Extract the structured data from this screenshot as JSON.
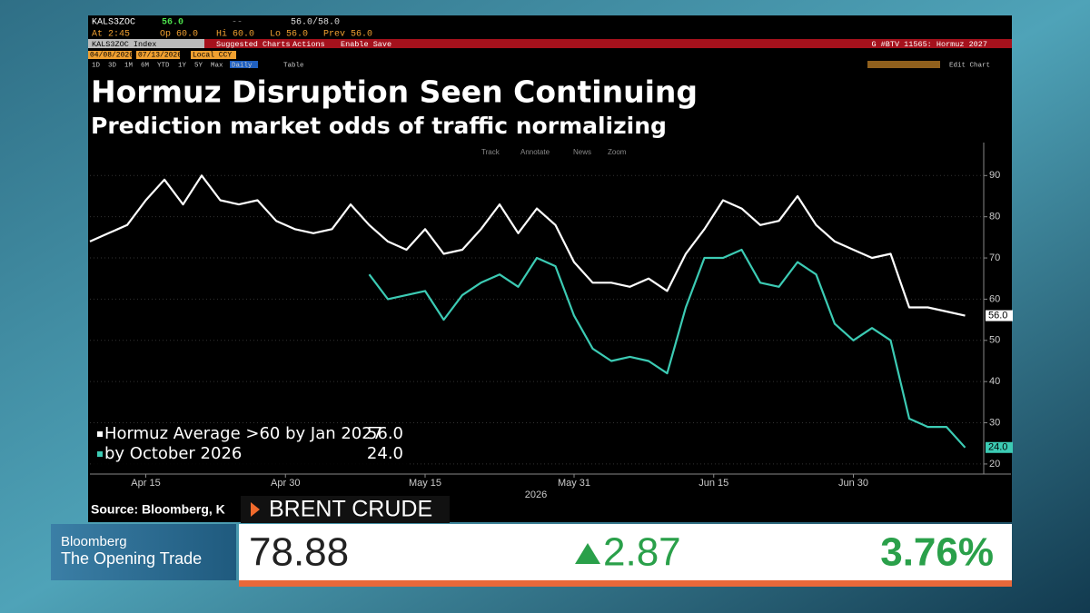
{
  "terminal": {
    "ticker": "KALS3ZOC",
    "last": "56.0",
    "dash": "--",
    "bid_ask": "56.0/58.0",
    "time": "At 2:45",
    "open": "Op 60.0",
    "high": "Hi 60.0",
    "low": "Lo 56.0",
    "prev": "Prev 56.0",
    "security": "KALS3ZOC Index",
    "menu": [
      "Suggested Charts",
      "Actions",
      "Enable Save"
    ],
    "chart_id": "G #BTV 11565: Hormuz 2027",
    "start_date": "04/08/2026",
    "end_date": "07/13/2026",
    "currency": "Local CCY",
    "periods": [
      "1D",
      "3D",
      "1M",
      "6M",
      "YTD",
      "1Y",
      "5Y",
      "Max",
      "Daily"
    ],
    "table": "Table",
    "edit": "Edit Chart",
    "tools": [
      "Track",
      "Annotate",
      "News",
      "Zoom"
    ]
  },
  "chart_data": {
    "type": "line",
    "title": "Hormuz Disruption Seen Continuing",
    "subtitle": "Prediction market odds of traffic normalizing",
    "source": "Source: Bloomberg, K",
    "x_axis_label": "2026",
    "x": [
      "2026-04-09",
      "2026-04-11",
      "2026-04-13",
      "2026-04-15",
      "2026-04-17",
      "2026-04-19",
      "2026-04-21",
      "2026-04-23",
      "2026-04-25",
      "2026-04-27",
      "2026-04-29",
      "2026-05-01",
      "2026-05-03",
      "2026-05-05",
      "2026-05-07",
      "2026-05-09",
      "2026-05-11",
      "2026-05-13",
      "2026-05-15",
      "2026-05-17",
      "2026-05-19",
      "2026-05-21",
      "2026-05-23",
      "2026-05-25",
      "2026-05-27",
      "2026-05-29",
      "2026-05-31",
      "2026-06-02",
      "2026-06-04",
      "2026-06-06",
      "2026-06-08",
      "2026-06-10",
      "2026-06-12",
      "2026-06-14",
      "2026-06-16",
      "2026-06-18",
      "2026-06-20",
      "2026-06-22",
      "2026-06-24",
      "2026-06-26",
      "2026-06-28",
      "2026-06-30",
      "2026-07-02",
      "2026-07-04",
      "2026-07-06",
      "2026-07-08",
      "2026-07-10",
      "2026-07-12"
    ],
    "series": [
      {
        "name": "Hormuz Average >60 by Jan 2027",
        "color": "#ffffff",
        "last_label": "56.0",
        "values": [
          74,
          76,
          78,
          84,
          89,
          83,
          90,
          84,
          83,
          84,
          79,
          77,
          76,
          77,
          83,
          78,
          74,
          72,
          77,
          71,
          72,
          77,
          83,
          76,
          82,
          78,
          69,
          64,
          64,
          63,
          65,
          62,
          71,
          77,
          84,
          82,
          78,
          79,
          85,
          78,
          74,
          72,
          70,
          71,
          58,
          58,
          57,
          56
        ]
      },
      {
        "name": "by October 2026",
        "color": "#3ccbb4",
        "last_label": "24.0",
        "values": [
          null,
          null,
          null,
          null,
          null,
          null,
          null,
          null,
          null,
          null,
          null,
          null,
          null,
          null,
          null,
          66,
          60,
          61,
          62,
          55,
          61,
          64,
          66,
          63,
          70,
          68,
          56,
          48,
          45,
          46,
          45,
          42,
          58,
          70,
          70,
          72,
          64,
          63,
          69,
          66,
          54,
          50,
          53,
          50,
          31,
          29,
          29,
          24
        ]
      }
    ],
    "xlim": [
      "2026-04-09",
      "2026-07-14"
    ],
    "xticks": [
      {
        "value": "2026-04-15",
        "label": "Apr 15"
      },
      {
        "value": "2026-04-30",
        "label": "Apr 30"
      },
      {
        "value": "2026-05-15",
        "label": "May 15"
      },
      {
        "value": "2026-05-31",
        "label": "May 31"
      },
      {
        "value": "2026-06-15",
        "label": "Jun 15"
      },
      {
        "value": "2026-06-30",
        "label": "Jun 30"
      }
    ],
    "ylim": [
      18,
      98
    ],
    "yticks": [
      20,
      30,
      40,
      50,
      60,
      70,
      80,
      90
    ],
    "y_axis_side": "right",
    "grid": true,
    "legend": "lower left"
  },
  "ticker": {
    "network": "Bloomberg",
    "program": "The Opening Trade",
    "instrument": "BRENT CRUDE",
    "price": "78.88",
    "change": "2.87",
    "change_pct": "3.76%"
  }
}
